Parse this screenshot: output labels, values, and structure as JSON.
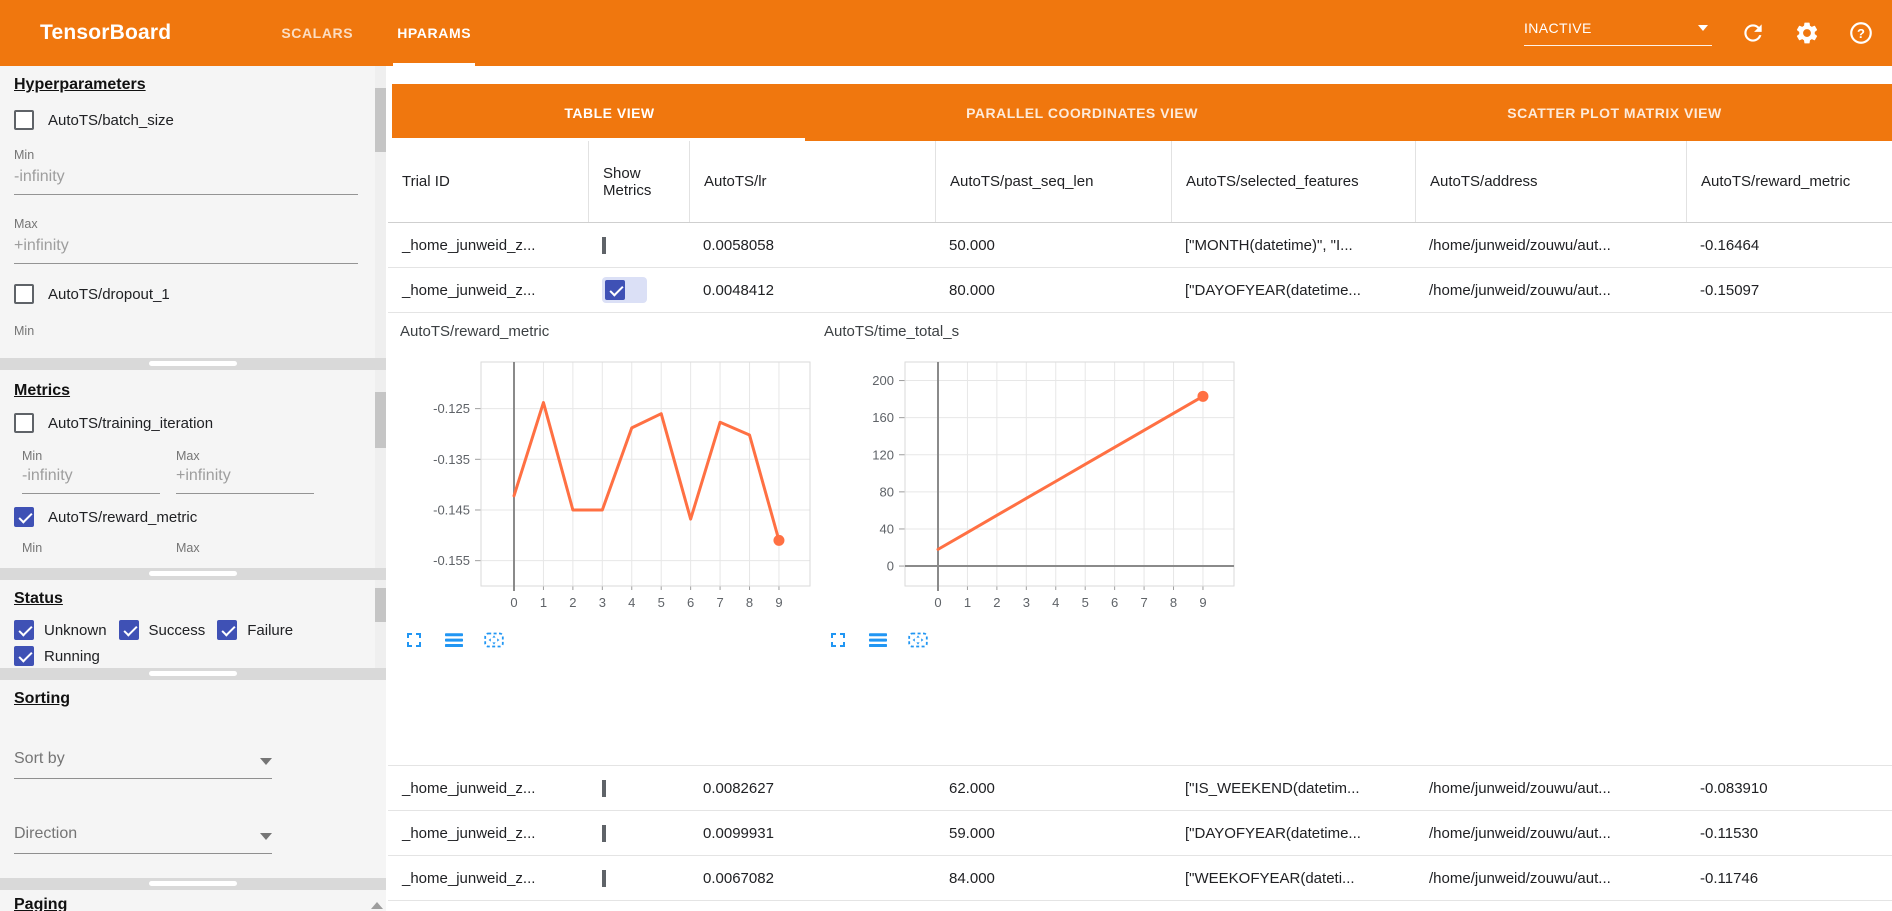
{
  "topbar": {
    "title": "TensorBoard",
    "tabs": [
      {
        "label": "SCALARS",
        "active": false
      },
      {
        "label": "HPARAMS",
        "active": true
      }
    ],
    "run_status": "INACTIVE",
    "icons": [
      "dropdown-arrow-icon",
      "refresh-icon",
      "settings-gear-icon",
      "help-icon"
    ]
  },
  "sidebar": {
    "hyperparameters": {
      "title": "Hyperparameters",
      "min_label": "Min",
      "max_label": "Max",
      "params": [
        {
          "label": "AutoTS/batch_size",
          "checked": false,
          "min": "-infinity",
          "max": "+infinity"
        },
        {
          "label": "AutoTS/dropout_1",
          "checked": false
        }
      ]
    },
    "metrics": {
      "title": "Metrics",
      "min_label": "Min",
      "max_label": "Max",
      "items": [
        {
          "label": "AutoTS/training_iteration",
          "checked": false,
          "min": "-infinity",
          "max": "+infinity"
        },
        {
          "label": "AutoTS/reward_metric",
          "checked": true
        }
      ]
    },
    "status": {
      "title": "Status",
      "options": [
        {
          "label": "Unknown",
          "checked": true
        },
        {
          "label": "Success",
          "checked": true
        },
        {
          "label": "Failure",
          "checked": true
        },
        {
          "label": "Running",
          "checked": true
        }
      ]
    },
    "sorting": {
      "title": "Sorting",
      "sort_by_label": "Sort by",
      "direction_label": "Direction"
    },
    "paging": {
      "title": "Paging"
    }
  },
  "main": {
    "view_tabs": [
      {
        "label": "TABLE VIEW",
        "active": true
      },
      {
        "label": "PARALLEL COORDINATES VIEW",
        "active": false
      },
      {
        "label": "SCATTER PLOT MATRIX VIEW",
        "active": false
      }
    ],
    "table": {
      "columns": [
        "Trial ID",
        "Show Metrics",
        "AutoTS/lr",
        "AutoTS/past_seq_len",
        "AutoTS/selected_features",
        "AutoTS/address",
        "AutoTS/reward_metric"
      ],
      "rows_above": [
        {
          "trial_id": "_home_junweid_z...",
          "show_metrics": false,
          "lr": "0.0058058",
          "past_seq_len": "50.000",
          "selected_features": "[\"MONTH(datetime)\", \"I...",
          "address": "/home/junweid/zouwu/aut...",
          "reward_metric": "-0.16464"
        },
        {
          "trial_id": "_home_junweid_z...",
          "show_metrics": true,
          "lr": "0.0048412",
          "past_seq_len": "80.000",
          "selected_features": "[\"DAYOFYEAR(datetime...",
          "address": "/home/junweid/zouwu/aut...",
          "reward_metric": "-0.15097"
        }
      ],
      "rows_below": [
        {
          "trial_id": "_home_junweid_z...",
          "show_metrics": false,
          "lr": "0.0082627",
          "past_seq_len": "62.000",
          "selected_features": "[\"IS_WEEKEND(datetim...",
          "address": "/home/junweid/zouwu/aut...",
          "reward_metric": "-0.083910"
        },
        {
          "trial_id": "_home_junweid_z...",
          "show_metrics": false,
          "lr": "0.0099931",
          "past_seq_len": "59.000",
          "selected_features": "[\"DAYOFYEAR(datetime...",
          "address": "/home/junweid/zouwu/aut...",
          "reward_metric": "-0.11530"
        },
        {
          "trial_id": "_home_junweid_z...",
          "show_metrics": false,
          "lr": "0.0067082",
          "past_seq_len": "84.000",
          "selected_features": "[\"WEEKOFYEAR(dateti...",
          "address": "/home/junweid/zouwu/aut...",
          "reward_metric": "-0.11746"
        }
      ]
    }
  },
  "chart_data": [
    {
      "type": "line",
      "title": "AutoTS/reward_metric",
      "x": [
        0,
        1,
        2,
        3,
        4,
        5,
        6,
        7,
        8,
        9
      ],
      "values": [
        -0.1422,
        -0.1238,
        -0.145,
        -0.145,
        -0.1288,
        -0.126,
        -0.1468,
        -0.1277,
        -0.1302,
        -0.151
      ],
      "xlabel": "",
      "ylabel": "",
      "yticks": [
        -0.125,
        -0.135,
        -0.145,
        -0.155
      ],
      "ytick_labels": [
        "-0.125",
        "-0.135",
        "-0.145",
        "-0.155"
      ],
      "ylim": [
        -0.16,
        -0.1158
      ],
      "grid": true,
      "legend": "none",
      "line_color": "#ff7043",
      "endpoint_dot": true,
      "zero_line": false,
      "toolbar_icons": [
        "fullscreen-icon",
        "runs-list-icon",
        "reset-zoom-icon"
      ]
    },
    {
      "type": "line",
      "title": "AutoTS/time_total_s",
      "x": [
        0,
        1,
        2,
        3,
        4,
        5,
        6,
        7,
        8,
        9
      ],
      "values": [
        18,
        36.3,
        54.7,
        73,
        91.3,
        109.7,
        128,
        146.3,
        164.7,
        183
      ],
      "xlabel": "",
      "ylabel": "",
      "yticks": [
        0,
        40,
        80,
        120,
        160,
        200
      ],
      "ytick_labels": [
        "0",
        "40",
        "80",
        "120",
        "160",
        "200"
      ],
      "ylim": [
        -21.5,
        220
      ],
      "grid": true,
      "legend": "none",
      "line_color": "#ff7043",
      "endpoint_dot": true,
      "zero_line": true,
      "toolbar_icons": [
        "fullscreen-icon",
        "runs-list-icon",
        "reset-zoom-icon"
      ]
    }
  ],
  "colors": {
    "header_orange": "#f0770e",
    "accent_indigo": "#3f51b5",
    "chart_line": "#ff7043",
    "tool_icon_blue": "#2196f3",
    "checked_pill": "#dbe0f6"
  }
}
